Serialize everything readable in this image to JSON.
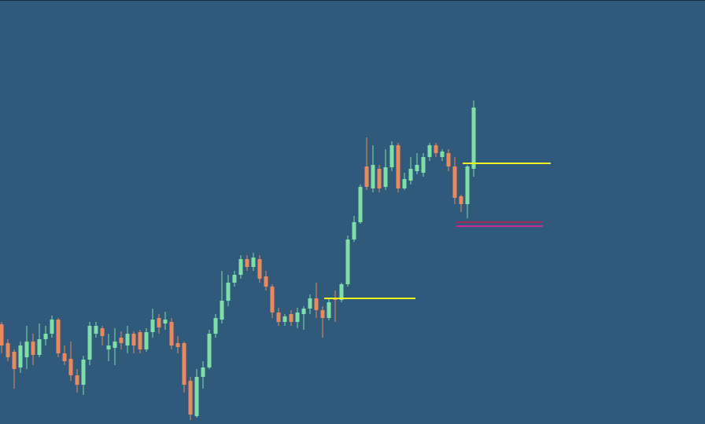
{
  "chart_data": {
    "type": "candlestick",
    "up_color": "#7ee0a6",
    "down_color": "#f0875a",
    "ylim": [
      0,
      540
    ],
    "open": [
      127,
      103,
      92,
      72,
      85,
      105,
      88,
      108,
      115,
      133,
      90,
      83,
      62,
      50,
      82,
      115,
      122,
      95,
      97,
      110,
      100,
      115,
      117,
      95,
      117,
      135,
      128,
      130,
      103,
      103,
      55,
      10,
      60,
      72,
      115,
      133,
      157,
      180,
      190,
      210,
      200,
      210,
      188,
      175,
      142,
      130,
      140,
      130,
      140,
      147,
      160,
      145,
      135,
      160,
      158,
      178,
      235,
      257,
      328,
      300,
      325,
      302,
      327,
      355,
      300,
      310,
      322,
      320,
      340,
      355,
      340,
      345,
      328,
      290,
      280,
      325
    ],
    "high": [
      130,
      108,
      95,
      105,
      125,
      115,
      128,
      125,
      138,
      135,
      100,
      105,
      70,
      87,
      130,
      130,
      125,
      115,
      122,
      118,
      125,
      118,
      120,
      122,
      147,
      140,
      143,
      135,
      112,
      105,
      60,
      70,
      80,
      120,
      140,
      195,
      190,
      195,
      215,
      215,
      218,
      215,
      195,
      178,
      148,
      140,
      145,
      148,
      150,
      165,
      180,
      150,
      160,
      170,
      180,
      240,
      265,
      305,
      365,
      355,
      330,
      350,
      360,
      358,
      320,
      340,
      345,
      345,
      358,
      358,
      350,
      350,
      340,
      292,
      330,
      412
    ],
    "low": [
      90,
      80,
      45,
      65,
      70,
      75,
      85,
      100,
      110,
      85,
      75,
      55,
      40,
      37,
      75,
      110,
      100,
      80,
      75,
      95,
      90,
      90,
      90,
      92,
      110,
      115,
      120,
      95,
      90,
      40,
      5,
      8,
      45,
      70,
      110,
      128,
      150,
      175,
      185,
      195,
      195,
      180,
      170,
      135,
      125,
      125,
      125,
      122,
      120,
      140,
      135,
      110,
      132,
      130,
      155,
      175,
      232,
      255,
      298,
      295,
      295,
      298,
      322,
      295,
      298,
      305,
      318,
      315,
      335,
      340,
      335,
      322,
      280,
      270,
      262,
      315
    ],
    "close": [
      100,
      85,
      70,
      100,
      105,
      88,
      108,
      115,
      133,
      90,
      80,
      62,
      50,
      82,
      125,
      125,
      112,
      100,
      105,
      103,
      115,
      100,
      95,
      117,
      133,
      123,
      133,
      100,
      98,
      50,
      12,
      60,
      72,
      115,
      135,
      157,
      180,
      190,
      210,
      200,
      212,
      185,
      175,
      142,
      130,
      137,
      130,
      142,
      147,
      160,
      145,
      135,
      155,
      158,
      178,
      235,
      257,
      302,
      302,
      330,
      300,
      327,
      355,
      300,
      312,
      325,
      330,
      340,
      355,
      345,
      347,
      328,
      288,
      280,
      328,
      403
    ],
    "levels": [
      {
        "value": 332,
        "color": "#f2f01e"
      },
      {
        "value": 160,
        "color": "#f2f01e"
      },
      {
        "value": 257,
        "color": "#a0285a"
      },
      {
        "value": 252,
        "color": "#d0289a"
      }
    ]
  }
}
